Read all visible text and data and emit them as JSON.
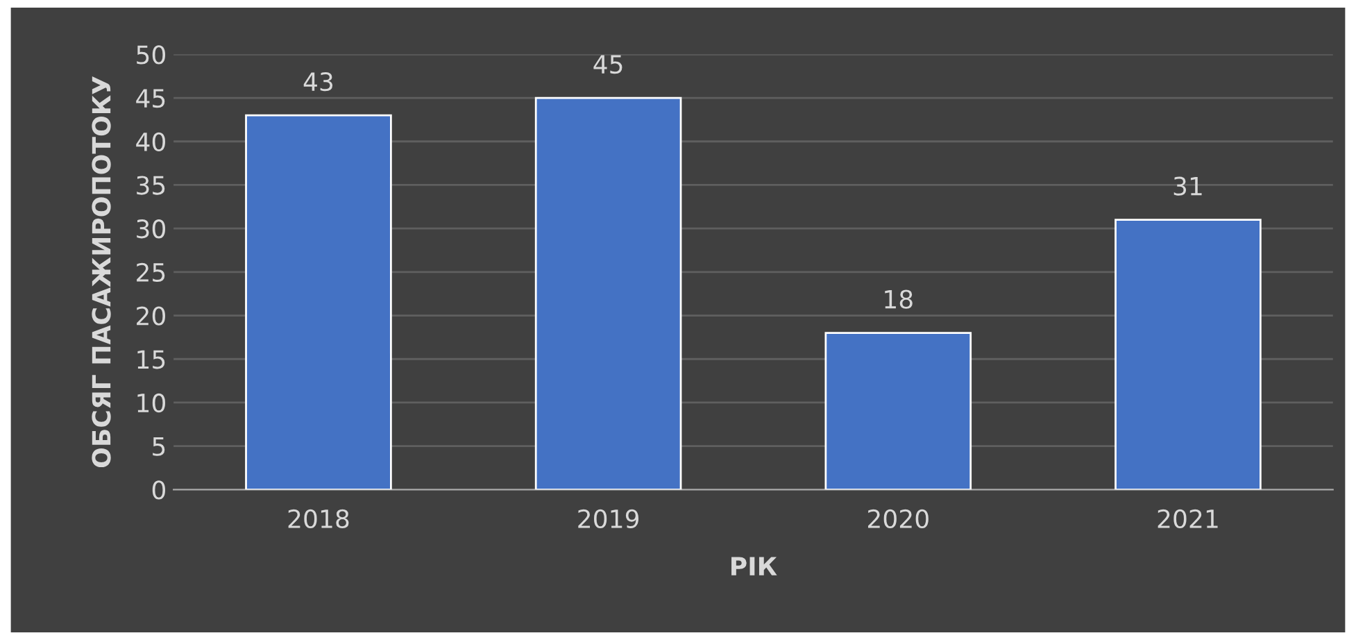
{
  "chart_data": {
    "type": "bar",
    "xlabel": "РІК",
    "ylabel": "ОБСЯГ ПАСАЖИРОПОТОКУ",
    "categories": [
      "2018",
      "2019",
      "2020",
      "2021"
    ],
    "values": [
      43,
      45,
      18,
      31
    ],
    "color": "#4472c4",
    "ylim": [
      0,
      50
    ],
    "yticks": [
      0,
      5,
      10,
      15,
      20,
      25,
      30,
      35,
      40,
      45,
      50
    ],
    "grid": "y",
    "data_labels": true
  }
}
